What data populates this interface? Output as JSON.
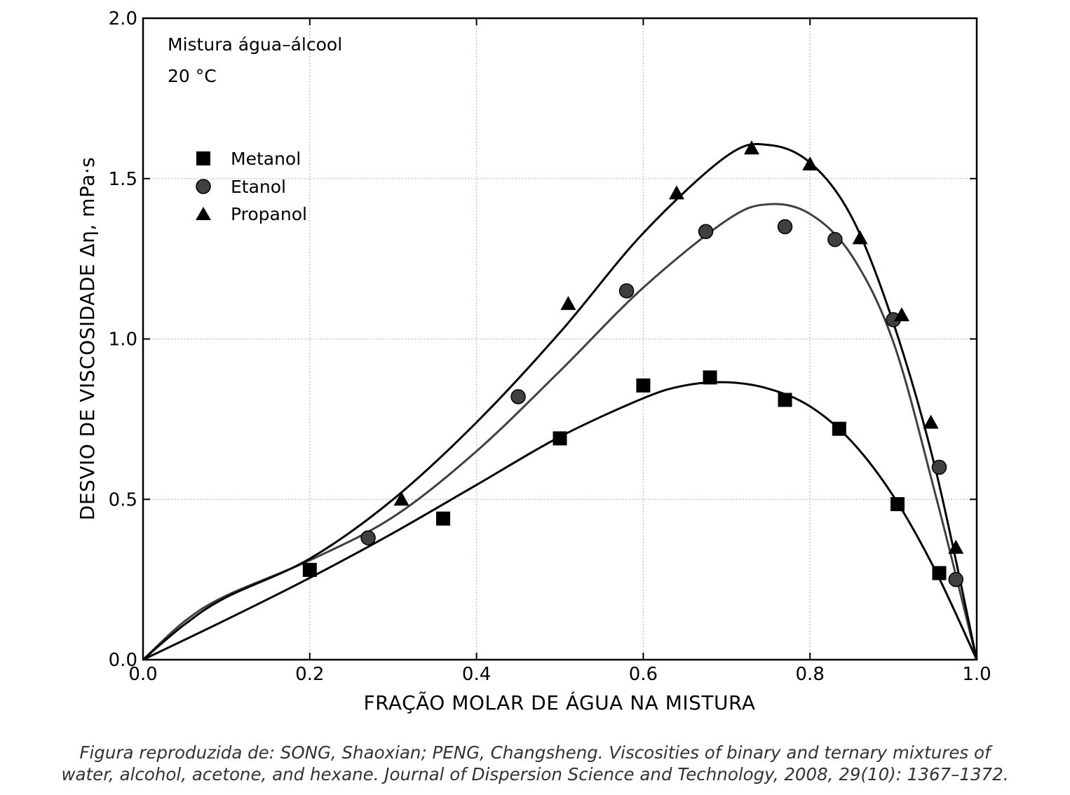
{
  "chart_data": {
    "type": "scatter",
    "xlabel": "FRAÇÃO MOLAR DE ÁGUA NA MISTURA",
    "ylabel": "DESVIO DE VISCOSIDADE  Δη,  mPa·s",
    "xlim": [
      0.0,
      1.0
    ],
    "ylim": [
      0.0,
      2.0
    ],
    "x_ticks": [
      "0.0",
      "0.2",
      "0.4",
      "0.6",
      "0.8",
      "1.0"
    ],
    "y_ticks": [
      "0.0",
      "0.5",
      "1.0",
      "1.5",
      "2.0"
    ],
    "grid": true,
    "legend_position": "upper-left",
    "annotations": [
      "Mistura água–álcool",
      "20 °C"
    ],
    "series": [
      {
        "name": "Metanol",
        "marker": "square",
        "color": "#000000",
        "curve_color": "#000000",
        "points": [
          [
            0.2,
            0.28
          ],
          [
            0.36,
            0.44
          ],
          [
            0.5,
            0.69
          ],
          [
            0.6,
            0.855
          ],
          [
            0.68,
            0.88
          ],
          [
            0.77,
            0.81
          ],
          [
            0.835,
            0.72
          ],
          [
            0.905,
            0.485
          ],
          [
            0.955,
            0.27
          ]
        ],
        "curve": [
          [
            0.0,
            0.0
          ],
          [
            0.1,
            0.125
          ],
          [
            0.2,
            0.255
          ],
          [
            0.3,
            0.395
          ],
          [
            0.4,
            0.545
          ],
          [
            0.5,
            0.695
          ],
          [
            0.6,
            0.815
          ],
          [
            0.65,
            0.855
          ],
          [
            0.7,
            0.865
          ],
          [
            0.75,
            0.845
          ],
          [
            0.8,
            0.79
          ],
          [
            0.85,
            0.68
          ],
          [
            0.9,
            0.51
          ],
          [
            0.95,
            0.28
          ],
          [
            1.0,
            0.0
          ]
        ]
      },
      {
        "name": "Etanol",
        "marker": "circle",
        "color": "#404040",
        "curve_color": "#404040",
        "points": [
          [
            0.27,
            0.38
          ],
          [
            0.45,
            0.82
          ],
          [
            0.58,
            1.15
          ],
          [
            0.675,
            1.335
          ],
          [
            0.77,
            1.35
          ],
          [
            0.83,
            1.31
          ],
          [
            0.9,
            1.06
          ],
          [
            0.955,
            0.6
          ],
          [
            0.975,
            0.25
          ]
        ],
        "curve": [
          [
            0.0,
            0.0
          ],
          [
            0.05,
            0.12
          ],
          [
            0.1,
            0.2
          ],
          [
            0.2,
            0.31
          ],
          [
            0.3,
            0.445
          ],
          [
            0.4,
            0.65
          ],
          [
            0.5,
            0.9
          ],
          [
            0.6,
            1.16
          ],
          [
            0.7,
            1.37
          ],
          [
            0.75,
            1.42
          ],
          [
            0.8,
            1.39
          ],
          [
            0.85,
            1.26
          ],
          [
            0.9,
            0.99
          ],
          [
            0.95,
            0.52
          ],
          [
            1.0,
            0.0
          ]
        ]
      },
      {
        "name": "Propanol",
        "marker": "triangle",
        "color": "#000000",
        "curve_color": "#000000",
        "points": [
          [
            0.31,
            0.5
          ],
          [
            0.51,
            1.11
          ],
          [
            0.64,
            1.455
          ],
          [
            0.73,
            1.595
          ],
          [
            0.8,
            1.545
          ],
          [
            0.86,
            1.315
          ],
          [
            0.91,
            1.075
          ],
          [
            0.945,
            0.74
          ],
          [
            0.975,
            0.35
          ]
        ],
        "curve": [
          [
            0.0,
            0.0
          ],
          [
            0.05,
            0.11
          ],
          [
            0.1,
            0.195
          ],
          [
            0.2,
            0.315
          ],
          [
            0.3,
            0.5
          ],
          [
            0.4,
            0.74
          ],
          [
            0.5,
            1.02
          ],
          [
            0.6,
            1.33
          ],
          [
            0.7,
            1.57
          ],
          [
            0.75,
            1.605
          ],
          [
            0.8,
            1.55
          ],
          [
            0.85,
            1.38
          ],
          [
            0.9,
            1.05
          ],
          [
            0.95,
            0.6
          ],
          [
            1.0,
            0.0
          ]
        ]
      }
    ]
  },
  "caption": {
    "line1": "Figura reproduzida de: SONG, Shaoxian; PENG, Changsheng. Viscosities of binary and ternary mixtures of",
    "line2": "water, alcohol, acetone, and hexane. Journal of Dispersion Science and Technology, 2008, 29(10): 1367–1372."
  }
}
